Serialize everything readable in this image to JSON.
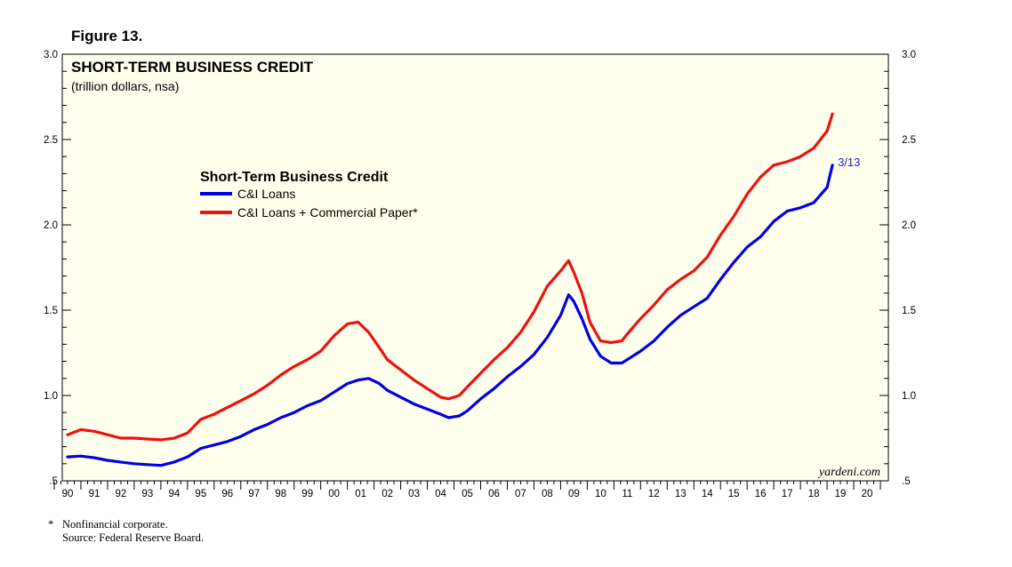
{
  "figure_label": "Figure 13.",
  "footnote": {
    "star": "*",
    "note": "Nonfinancial corporate.",
    "source": "Source: Federal Reserve Board."
  },
  "watermark": "yardeni.com",
  "colors": {
    "plot_background": "#ffffee",
    "cil": "#0000e6",
    "cp": "#ee1111",
    "annotation": "#2222cc"
  },
  "chart_data": {
    "type": "line",
    "title": "SHORT-TERM BUSINESS CREDIT",
    "subtitle": "(trillion dollars, nsa)",
    "legend_title": "Short-Term Business Credit",
    "legend_position": "upper-left",
    "grid": false,
    "xlim": [
      1989.8,
      2020.8
    ],
    "ylim": [
      0.5,
      3.0
    ],
    "y_ticks": [
      0.5,
      1.0,
      1.5,
      2.0,
      2.5,
      3.0
    ],
    "y_tick_labels": [
      ".5",
      "1.0",
      "1.5",
      "2.0",
      "2.5",
      "3.0"
    ],
    "x_tick_labels": [
      "90",
      "91",
      "92",
      "93",
      "94",
      "95",
      "96",
      "97",
      "98",
      "99",
      "00",
      "01",
      "02",
      "03",
      "04",
      "05",
      "06",
      "07",
      "08",
      "09",
      "10",
      "11",
      "12",
      "13",
      "14",
      "15",
      "16",
      "17",
      "18",
      "19",
      "20"
    ],
    "annotation": {
      "text": "3/13",
      "x": 2018.7,
      "y": 2.35
    },
    "series": [
      {
        "name": "C&I Loans",
        "color": "#0000e6",
        "x": [
          1990.0,
          1990.5,
          1991.0,
          1991.5,
          1992.0,
          1992.5,
          1993.0,
          1993.5,
          1994.0,
          1994.5,
          1995.0,
          1995.5,
          1996.0,
          1996.5,
          1997.0,
          1997.5,
          1998.0,
          1998.5,
          1999.0,
          1999.5,
          2000.0,
          2000.5,
          2000.9,
          2001.3,
          2001.7,
          2002.0,
          2002.5,
          2003.0,
          2003.5,
          2004.0,
          2004.3,
          2004.7,
          2005.0,
          2005.5,
          2006.0,
          2006.5,
          2007.0,
          2007.5,
          2008.0,
          2008.5,
          2008.8,
          2009.0,
          2009.3,
          2009.6,
          2010.0,
          2010.4,
          2010.8,
          2011.0,
          2011.5,
          2012.0,
          2012.5,
          2013.0,
          2013.5,
          2014.0,
          2014.5,
          2015.0,
          2015.5,
          2016.0,
          2016.5,
          2017.0,
          2017.5,
          2018.0,
          2018.5,
          2018.7
        ],
        "values": [
          0.64,
          0.645,
          0.635,
          0.62,
          0.61,
          0.6,
          0.595,
          0.59,
          0.61,
          0.64,
          0.69,
          0.71,
          0.73,
          0.76,
          0.8,
          0.83,
          0.87,
          0.9,
          0.94,
          0.97,
          1.02,
          1.07,
          1.09,
          1.1,
          1.07,
          1.03,
          0.99,
          0.95,
          0.92,
          0.89,
          0.87,
          0.88,
          0.91,
          0.98,
          1.04,
          1.11,
          1.17,
          1.24,
          1.34,
          1.47,
          1.59,
          1.55,
          1.45,
          1.33,
          1.23,
          1.19,
          1.19,
          1.21,
          1.26,
          1.32,
          1.4,
          1.47,
          1.52,
          1.57,
          1.68,
          1.78,
          1.87,
          1.93,
          2.02,
          2.08,
          2.1,
          2.13,
          2.22,
          2.35
        ]
      },
      {
        "name": "C&I Loans + Commercial Paper*",
        "color": "#ee1111",
        "x": [
          1990.0,
          1990.5,
          1991.0,
          1991.5,
          1992.0,
          1992.5,
          1993.0,
          1993.5,
          1994.0,
          1994.5,
          1995.0,
          1995.5,
          1996.0,
          1996.5,
          1997.0,
          1997.5,
          1998.0,
          1998.5,
          1999.0,
          1999.5,
          2000.0,
          2000.5,
          2000.9,
          2001.3,
          2001.7,
          2002.0,
          2002.5,
          2003.0,
          2003.5,
          2004.0,
          2004.3,
          2004.7,
          2005.0,
          2005.5,
          2006.0,
          2006.5,
          2007.0,
          2007.5,
          2008.0,
          2008.5,
          2008.8,
          2009.0,
          2009.3,
          2009.6,
          2010.0,
          2010.4,
          2010.8,
          2011.0,
          2011.5,
          2012.0,
          2012.5,
          2013.0,
          2013.5,
          2014.0,
          2014.5,
          2015.0,
          2015.5,
          2016.0,
          2016.5,
          2017.0,
          2017.5,
          2018.0,
          2018.5,
          2018.7
        ],
        "values": [
          0.77,
          0.8,
          0.79,
          0.77,
          0.75,
          0.75,
          0.745,
          0.74,
          0.75,
          0.78,
          0.86,
          0.89,
          0.93,
          0.97,
          1.01,
          1.06,
          1.12,
          1.17,
          1.21,
          1.26,
          1.35,
          1.42,
          1.43,
          1.37,
          1.28,
          1.21,
          1.15,
          1.09,
          1.04,
          0.99,
          0.98,
          1.0,
          1.05,
          1.13,
          1.21,
          1.28,
          1.37,
          1.49,
          1.64,
          1.73,
          1.79,
          1.72,
          1.6,
          1.43,
          1.32,
          1.31,
          1.32,
          1.36,
          1.45,
          1.53,
          1.62,
          1.68,
          1.73,
          1.81,
          1.94,
          2.05,
          2.18,
          2.28,
          2.35,
          2.37,
          2.4,
          2.45,
          2.55,
          2.65
        ]
      }
    ]
  }
}
